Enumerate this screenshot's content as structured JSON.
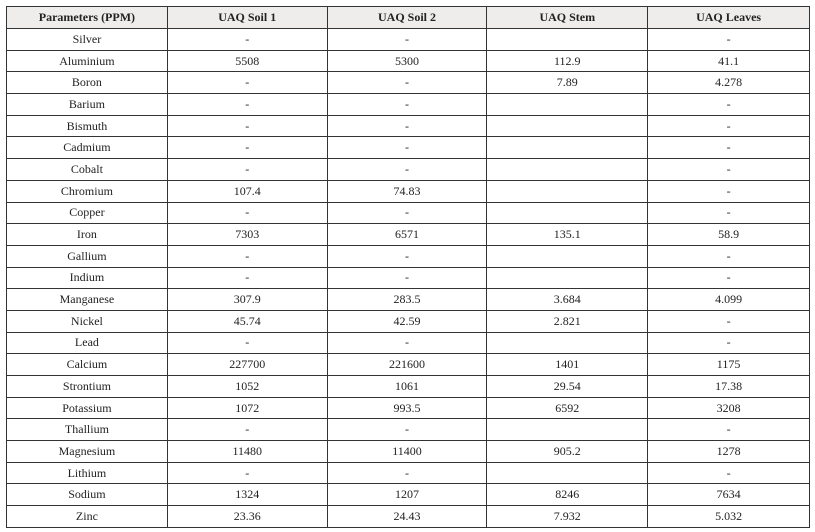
{
  "table": {
    "headers": [
      "Parameters (PPM)",
      "UAQ Soil 1",
      "UAQ Soil 2",
      "UAQ Stem",
      "UAQ Leaves"
    ],
    "rows": [
      [
        "Silver",
        "-",
        "-",
        "",
        "-"
      ],
      [
        "Aluminium",
        "5508",
        "5300",
        "112.9",
        "41.1"
      ],
      [
        "Boron",
        "-",
        "-",
        "7.89",
        "4.278"
      ],
      [
        "Barium",
        "-",
        "-",
        "",
        "-"
      ],
      [
        "Bismuth",
        "-",
        "-",
        "",
        "-"
      ],
      [
        "Cadmium",
        "-",
        "-",
        "",
        "-"
      ],
      [
        "Cobalt",
        "-",
        "-",
        "",
        "-"
      ],
      [
        "Chromium",
        "107.4",
        "74.83",
        "",
        "-"
      ],
      [
        "Copper",
        "-",
        "-",
        "",
        "-"
      ],
      [
        "Iron",
        "7303",
        "6571",
        "135.1",
        "58.9"
      ],
      [
        "Gallium",
        "-",
        "-",
        "",
        "-"
      ],
      [
        "Indium",
        "-",
        "-",
        "",
        "-"
      ],
      [
        "Manganese",
        "307.9",
        "283.5",
        "3.684",
        "4.099"
      ],
      [
        "Nickel",
        "45.74",
        "42.59",
        "2.821",
        "-"
      ],
      [
        "Lead",
        "-",
        "-",
        "",
        "-"
      ],
      [
        "Calcium",
        "227700",
        "221600",
        "1401",
        "1175"
      ],
      [
        "Strontium",
        "1052",
        "1061",
        "29.54",
        "17.38"
      ],
      [
        "Potassium",
        "1072",
        "993.5",
        "6592",
        "3208"
      ],
      [
        "Thallium",
        "-",
        "-",
        "",
        "-"
      ],
      [
        "Magnesium",
        "11480",
        "11400",
        "905.2",
        "1278"
      ],
      [
        "Lithium",
        "-",
        "-",
        "",
        "-"
      ],
      [
        "Sodium",
        "1324",
        "1207",
        "8246",
        "7634"
      ],
      [
        "Zinc",
        "23.36",
        "24.43",
        "7.932",
        "5.032"
      ]
    ]
  }
}
